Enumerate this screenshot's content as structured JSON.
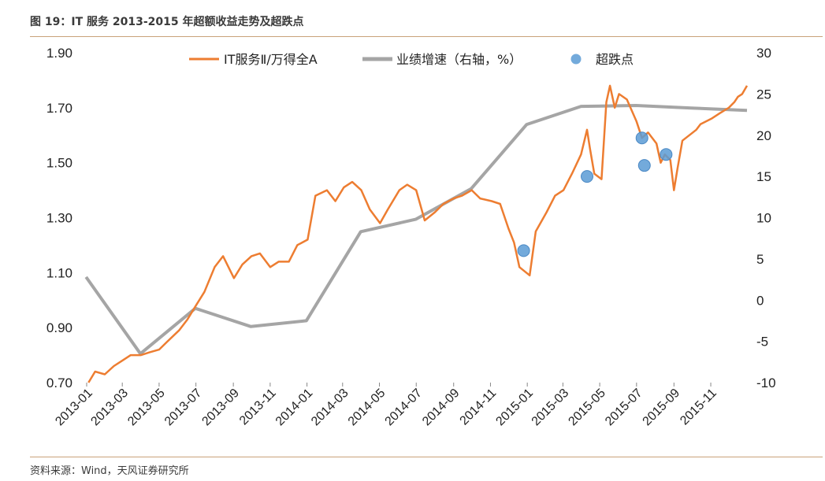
{
  "header": {
    "title": "图 19：IT 服务 2013-2015 年超额收益走势及超跌点",
    "source": "资料来源：Wind，天风证券研究所"
  },
  "colors": {
    "rule": "#c9a27a",
    "price_series": "#ed7d31",
    "growth_series": "#a5a5a5",
    "drop_points": "#5b9bd5"
  },
  "chart_data": {
    "type": "line",
    "x_tick_labels": [
      "2013-01",
      "2013-03",
      "2013-05",
      "2013-07",
      "2013-09",
      "2013-11",
      "2014-01",
      "2014-03",
      "2014-05",
      "2014-07",
      "2014-09",
      "2014-11",
      "2015-01",
      "2015-03",
      "2015-05",
      "2015-07",
      "2015-09",
      "2015-11"
    ],
    "left_axis": {
      "ticks": [
        "1.90",
        "1.70",
        "1.50",
        "1.30",
        "1.10",
        "0.90",
        "0.70"
      ],
      "ylim": [
        0.7,
        1.9
      ]
    },
    "right_axis": {
      "ticks": [
        "30",
        "25",
        "20",
        "15",
        "10",
        "5",
        "0",
        "-5",
        "-10"
      ],
      "ylim": [
        -10,
        30
      ]
    },
    "legend": {
      "placement": "top"
    },
    "series": [
      {
        "name": "IT服务Ⅱ/万得全A",
        "axis": "left",
        "style": "line",
        "x": [
          "2013-01-04",
          "2013-01-15",
          "2013-01-31",
          "2013-02-15",
          "2013-03-01",
          "2013-03-15",
          "2013-04-01",
          "2013-04-15",
          "2013-05-01",
          "2013-05-15",
          "2013-06-03",
          "2013-06-17",
          "2013-07-01",
          "2013-07-15",
          "2013-08-01",
          "2013-08-15",
          "2013-09-02",
          "2013-09-16",
          "2013-10-01",
          "2013-10-15",
          "2013-11-01",
          "2013-11-15",
          "2013-12-02",
          "2013-12-16",
          "2014-01-02",
          "2014-01-15",
          "2014-02-03",
          "2014-02-17",
          "2014-03-03",
          "2014-03-17",
          "2014-04-01",
          "2014-04-15",
          "2014-05-02",
          "2014-05-15",
          "2014-06-03",
          "2014-06-16",
          "2014-07-01",
          "2014-07-15",
          "2014-08-01",
          "2014-08-15",
          "2014-09-01",
          "2014-09-15",
          "2014-10-01",
          "2014-10-15",
          "2014-11-03",
          "2014-11-17",
          "2014-12-01",
          "2014-12-10",
          "2014-12-19",
          "2015-01-05",
          "2015-01-15",
          "2015-02-02",
          "2015-02-16",
          "2015-03-02",
          "2015-03-16",
          "2015-03-31",
          "2015-04-10",
          "2015-04-15",
          "2015-04-22",
          "2015-05-04",
          "2015-05-12",
          "2015-05-18",
          "2015-05-26",
          "2015-06-02",
          "2015-06-15",
          "2015-07-01",
          "2015-07-10",
          "2015-07-20",
          "2015-08-03",
          "2015-08-10",
          "2015-08-17",
          "2015-08-26",
          "2015-09-01",
          "2015-09-07",
          "2015-09-15",
          "2015-10-08",
          "2015-10-15",
          "2015-11-02",
          "2015-11-16",
          "2015-12-01",
          "2015-12-10",
          "2015-12-16",
          "2015-12-23",
          "2015-12-31"
        ],
        "values": [
          0.7,
          0.74,
          0.73,
          0.76,
          0.78,
          0.8,
          0.8,
          0.81,
          0.82,
          0.85,
          0.89,
          0.93,
          0.98,
          1.03,
          1.12,
          1.16,
          1.08,
          1.13,
          1.16,
          1.17,
          1.12,
          1.14,
          1.14,
          1.2,
          1.22,
          1.38,
          1.4,
          1.36,
          1.41,
          1.43,
          1.4,
          1.33,
          1.28,
          1.33,
          1.4,
          1.42,
          1.4,
          1.29,
          1.32,
          1.35,
          1.37,
          1.38,
          1.4,
          1.37,
          1.36,
          1.35,
          1.26,
          1.21,
          1.12,
          1.09,
          1.25,
          1.32,
          1.38,
          1.4,
          1.46,
          1.53,
          1.62,
          1.55,
          1.46,
          1.44,
          1.72,
          1.78,
          1.7,
          1.75,
          1.73,
          1.65,
          1.59,
          1.61,
          1.57,
          1.5,
          1.53,
          1.51,
          1.4,
          1.48,
          1.58,
          1.62,
          1.64,
          1.66,
          1.68,
          1.7,
          1.72,
          1.74,
          1.75,
          1.78
        ]
      },
      {
        "name": "业绩增速（右轴，%）",
        "axis": "right",
        "style": "line",
        "x": [
          "2012-12-31",
          "2013-03-31",
          "2013-06-30",
          "2013-09-30",
          "2013-12-31",
          "2014-03-31",
          "2014-06-30",
          "2014-09-30",
          "2014-12-31",
          "2015-03-31",
          "2015-06-30",
          "2015-09-30",
          "2015-12-31"
        ],
        "values": [
          2.8,
          -6.5,
          -1.0,
          -3.2,
          -2.5,
          8.3,
          9.8,
          13.5,
          21.3,
          23.5,
          23.6,
          23.3,
          23.0
        ]
      },
      {
        "name": "超跌点",
        "axis": "left",
        "style": "scatter",
        "x": [
          "2014-12-26",
          "2015-04-10",
          "2015-07-10",
          "2015-07-14",
          "2015-08-19"
        ],
        "values": [
          1.18,
          1.45,
          1.59,
          1.49,
          1.53
        ]
      }
    ]
  }
}
